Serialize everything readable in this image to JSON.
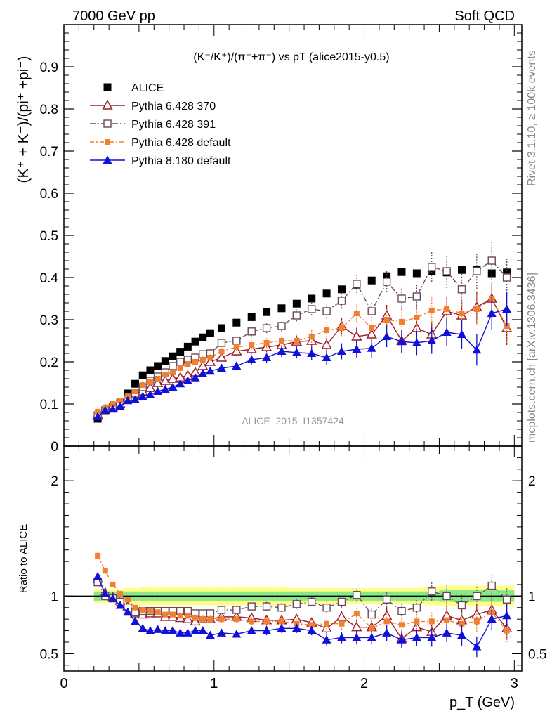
{
  "header": {
    "left": "7000 GeV pp",
    "right": "Soft QCD"
  },
  "side_labels": {
    "rivet": "Rivet 3.1.10, ≥ 100k events",
    "mcplots": "mcplots.cern.ch [arXiv:1306.3436]"
  },
  "colors": {
    "alice": "#000000",
    "p6_370": "#9b1b2a",
    "p6_391": "#6b4a58",
    "p6_default": "#f07f32",
    "p8_default": "#1010d8",
    "band_yellow": "#ffff88",
    "band_green": "#88e888"
  },
  "chart_data": [
    {
      "type": "scatter",
      "panel": "main",
      "title": "(K⁻/K⁺)/(π⁻+π⁻) vs pT (alice2015-y0.5)",
      "watermark": "ALICE_2015_I1357424",
      "ylabel": "(K⁺ + K⁻)/(pi⁺ +pi⁻)",
      "xlabel": "p_T (GeV)",
      "xlim": [
        0,
        3.05
      ],
      "ylim": [
        0,
        1.0
      ],
      "yticks": [
        "0",
        "0.1",
        "0.2",
        "0.3",
        "0.4",
        "0.5",
        "0.6",
        "0.7",
        "0.8",
        "0.9"
      ],
      "legend_position": "top-left",
      "x": [
        0.225,
        0.275,
        0.325,
        0.375,
        0.425,
        0.475,
        0.525,
        0.575,
        0.625,
        0.675,
        0.725,
        0.775,
        0.825,
        0.875,
        0.925,
        0.975,
        1.05,
        1.15,
        1.25,
        1.35,
        1.45,
        1.55,
        1.65,
        1.75,
        1.85,
        1.95,
        2.05,
        2.15,
        2.25,
        2.35,
        2.45,
        2.55,
        2.65,
        2.75,
        2.85,
        2.95
      ],
      "series": [
        {
          "name": "ALICE",
          "marker": "square-filled",
          "color": "#000000",
          "values": [
            0.065,
            0.085,
            0.092,
            0.103,
            0.125,
            0.148,
            0.168,
            0.18,
            0.19,
            0.202,
            0.213,
            0.224,
            0.236,
            0.248,
            0.258,
            0.268,
            0.28,
            0.293,
            0.306,
            0.318,
            0.327,
            0.338,
            0.35,
            0.362,
            0.372,
            0.383,
            0.393,
            0.403,
            0.413,
            0.41,
            0.415,
            0.412,
            0.418,
            0.418,
            0.41,
            0.412
          ],
          "errors": [
            0.003,
            0.003,
            0.003,
            0.003,
            0.003,
            0.003,
            0.003,
            0.003,
            0.003,
            0.003,
            0.003,
            0.003,
            0.003,
            0.003,
            0.003,
            0.003,
            0.003,
            0.003,
            0.003,
            0.003,
            0.003,
            0.003,
            0.003,
            0.004,
            0.004,
            0.004,
            0.004,
            0.004,
            0.004,
            0.004,
            0.004,
            0.004,
            0.005,
            0.005,
            0.005,
            0.005
          ]
        },
        {
          "name": "Pythia 6.428 370",
          "marker": "triangle-open",
          "color": "#9b1b2a",
          "values": [
            0.075,
            0.088,
            0.092,
            0.1,
            0.115,
            0.123,
            0.13,
            0.138,
            0.15,
            0.155,
            0.16,
            0.163,
            0.168,
            0.175,
            0.19,
            0.2,
            0.21,
            0.225,
            0.23,
            0.235,
            0.24,
            0.248,
            0.25,
            0.24,
            0.285,
            0.26,
            0.265,
            0.31,
            0.25,
            0.28,
            0.265,
            0.32,
            0.31,
            0.33,
            0.35,
            0.28
          ],
          "errors": [
            0.003,
            0.003,
            0.003,
            0.004,
            0.004,
            0.004,
            0.005,
            0.005,
            0.005,
            0.006,
            0.006,
            0.006,
            0.007,
            0.007,
            0.008,
            0.008,
            0.009,
            0.01,
            0.011,
            0.012,
            0.013,
            0.014,
            0.015,
            0.017,
            0.019,
            0.021,
            0.023,
            0.025,
            0.027,
            0.029,
            0.031,
            0.033,
            0.035,
            0.037,
            0.039,
            0.04
          ]
        },
        {
          "name": "Pythia 6.428 391",
          "marker": "square-open",
          "color": "#6b4a58",
          "values": [
            0.073,
            0.085,
            0.09,
            0.098,
            0.112,
            0.125,
            0.14,
            0.155,
            0.165,
            0.175,
            0.19,
            0.2,
            0.205,
            0.21,
            0.218,
            0.22,
            0.245,
            0.25,
            0.272,
            0.28,
            0.285,
            0.31,
            0.325,
            0.32,
            0.345,
            0.385,
            0.32,
            0.39,
            0.35,
            0.355,
            0.425,
            0.415,
            0.372,
            0.415,
            0.44,
            0.4
          ],
          "errors": [
            0.003,
            0.003,
            0.003,
            0.004,
            0.004,
            0.004,
            0.005,
            0.005,
            0.005,
            0.006,
            0.006,
            0.006,
            0.007,
            0.007,
            0.008,
            0.008,
            0.009,
            0.01,
            0.011,
            0.012,
            0.013,
            0.014,
            0.015,
            0.017,
            0.019,
            0.021,
            0.023,
            0.025,
            0.027,
            0.029,
            0.035,
            0.04,
            0.04,
            0.042,
            0.045,
            0.045
          ]
        },
        {
          "name": "Pythia 6.428 default",
          "marker": "square-filled-small",
          "color": "#f07f32",
          "values": [
            0.082,
            0.092,
            0.1,
            0.108,
            0.118,
            0.13,
            0.145,
            0.152,
            0.16,
            0.17,
            0.175,
            0.185,
            0.195,
            0.2,
            0.205,
            0.21,
            0.225,
            0.235,
            0.24,
            0.245,
            0.25,
            0.25,
            0.26,
            0.275,
            0.28,
            0.315,
            0.28,
            0.3,
            0.295,
            0.305,
            0.322,
            0.325,
            0.315,
            0.325,
            0.35,
            0.285
          ],
          "errors": [
            0.003,
            0.003,
            0.003,
            0.004,
            0.004,
            0.004,
            0.005,
            0.005,
            0.005,
            0.006,
            0.006,
            0.006,
            0.007,
            0.007,
            0.008,
            0.008,
            0.009,
            0.01,
            0.011,
            0.012,
            0.013,
            0.014,
            0.015,
            0.017,
            0.019,
            0.021,
            0.023,
            0.025,
            0.027,
            0.029,
            0.031,
            0.033,
            0.035,
            0.037,
            0.039,
            0.04
          ]
        },
        {
          "name": "Pythia 8.180 default",
          "marker": "triangle-filled",
          "color": "#1010d8",
          "values": [
            0.07,
            0.085,
            0.088,
            0.095,
            0.108,
            0.11,
            0.118,
            0.122,
            0.13,
            0.135,
            0.14,
            0.148,
            0.155,
            0.162,
            0.172,
            0.178,
            0.185,
            0.19,
            0.205,
            0.21,
            0.225,
            0.222,
            0.22,
            0.21,
            0.225,
            0.23,
            0.232,
            0.26,
            0.248,
            0.245,
            0.25,
            0.27,
            0.265,
            0.228,
            0.315,
            0.325
          ],
          "errors": [
            0.003,
            0.003,
            0.003,
            0.004,
            0.004,
            0.004,
            0.005,
            0.005,
            0.005,
            0.006,
            0.006,
            0.006,
            0.007,
            0.007,
            0.008,
            0.008,
            0.009,
            0.01,
            0.011,
            0.012,
            0.013,
            0.014,
            0.015,
            0.017,
            0.019,
            0.021,
            0.023,
            0.025,
            0.027,
            0.029,
            0.031,
            0.033,
            0.035,
            0.037,
            0.039,
            0.04
          ]
        }
      ]
    },
    {
      "type": "scatter",
      "panel": "ratio",
      "ylabel": "Ratio to ALICE",
      "xlabel": "p_T (GeV)",
      "xlim": [
        0,
        3.05
      ],
      "ylim": [
        0.35,
        2.3
      ],
      "yticks": [
        "0.5",
        "1",
        "2"
      ],
      "xticks": [
        "0",
        "1",
        "2",
        "3"
      ],
      "reference_line": 1,
      "band_yellow": {
        "x_edges": [
          0.2,
          0.3,
          0.4,
          0.5,
          0.6,
          0.7,
          0.8,
          0.9,
          1.0,
          1.1,
          1.2,
          1.3,
          1.4,
          1.5,
          1.6,
          1.7,
          1.8,
          1.9,
          2.0,
          2.1,
          2.2,
          2.3,
          2.4,
          2.5,
          2.6,
          2.7,
          2.8,
          2.9,
          3.0
        ],
        "half_widths": [
          0.06,
          0.06,
          0.07,
          0.08,
          0.08,
          0.08,
          0.08,
          0.08,
          0.08,
          0.08,
          0.08,
          0.08,
          0.08,
          0.07,
          0.07,
          0.07,
          0.07,
          0.07,
          0.07,
          0.07,
          0.07,
          0.07,
          0.08,
          0.09,
          0.09,
          0.09,
          0.09,
          0.09
        ]
      },
      "band_green": {
        "x_edges": [
          0.2,
          0.3,
          0.4,
          0.5,
          0.6,
          0.7,
          0.8,
          0.9,
          1.0,
          1.1,
          1.2,
          1.3,
          1.4,
          1.5,
          1.6,
          1.7,
          1.8,
          1.9,
          2.0,
          2.1,
          2.2,
          2.3,
          2.4,
          2.5,
          2.6,
          2.7,
          2.8,
          2.9,
          3.0
        ],
        "half_widths": [
          0.04,
          0.04,
          0.04,
          0.04,
          0.04,
          0.04,
          0.04,
          0.04,
          0.04,
          0.04,
          0.04,
          0.04,
          0.04,
          0.04,
          0.04,
          0.04,
          0.04,
          0.04,
          0.04,
          0.04,
          0.04,
          0.04,
          0.04,
          0.05,
          0.05,
          0.05,
          0.05,
          0.05
        ]
      },
      "x": [
        0.225,
        0.275,
        0.325,
        0.375,
        0.425,
        0.475,
        0.525,
        0.575,
        0.625,
        0.675,
        0.725,
        0.775,
        0.825,
        0.875,
        0.925,
        0.975,
        1.05,
        1.15,
        1.25,
        1.35,
        1.45,
        1.55,
        1.65,
        1.75,
        1.85,
        1.95,
        2.05,
        2.15,
        2.25,
        2.35,
        2.45,
        2.55,
        2.65,
        2.75,
        2.85,
        2.95
      ],
      "series": [
        {
          "name": "Pythia 6.428 370",
          "values": [
            1.15,
            1.03,
            0.99,
            0.96,
            0.91,
            0.85,
            0.84,
            0.85,
            0.85,
            0.82,
            0.82,
            0.81,
            0.8,
            0.78,
            0.8,
            0.8,
            0.82,
            0.82,
            0.81,
            0.79,
            0.79,
            0.8,
            0.77,
            0.72,
            0.82,
            0.73,
            0.73,
            0.83,
            0.63,
            0.73,
            0.69,
            0.83,
            0.79,
            0.84,
            0.88,
            0.72
          ],
          "errors": [
            0.03,
            0.02,
            0.02,
            0.02,
            0.02,
            0.02,
            0.02,
            0.02,
            0.02,
            0.02,
            0.02,
            0.02,
            0.03,
            0.03,
            0.03,
            0.03,
            0.03,
            0.03,
            0.03,
            0.04,
            0.04,
            0.04,
            0.04,
            0.05,
            0.05,
            0.06,
            0.06,
            0.07,
            0.07,
            0.07,
            0.08,
            0.08,
            0.09,
            0.09,
            0.1,
            0.1
          ]
        },
        {
          "name": "Pythia 6.428 391",
          "values": [
            1.12,
            1.0,
            0.98,
            0.95,
            0.9,
            0.86,
            0.87,
            0.87,
            0.87,
            0.87,
            0.87,
            0.87,
            0.87,
            0.85,
            0.85,
            0.85,
            0.88,
            0.88,
            0.91,
            0.91,
            0.9,
            0.93,
            0.95,
            0.9,
            0.95,
            1.01,
            0.84,
            0.97,
            0.87,
            0.9,
            1.04,
            1.0,
            0.92,
            1.0,
            1.09,
            0.97
          ],
          "errors": [
            0.03,
            0.02,
            0.02,
            0.02,
            0.02,
            0.02,
            0.02,
            0.02,
            0.02,
            0.02,
            0.02,
            0.02,
            0.03,
            0.03,
            0.03,
            0.03,
            0.03,
            0.03,
            0.03,
            0.04,
            0.04,
            0.04,
            0.04,
            0.05,
            0.05,
            0.06,
            0.06,
            0.07,
            0.07,
            0.07,
            0.08,
            0.09,
            0.09,
            0.1,
            0.11,
            0.11
          ]
        },
        {
          "name": "Pythia 6.428 default",
          "values": [
            1.35,
            1.22,
            1.1,
            1.02,
            0.97,
            0.9,
            0.88,
            0.87,
            0.86,
            0.84,
            0.84,
            0.83,
            0.83,
            0.81,
            0.8,
            0.8,
            0.8,
            0.8,
            0.78,
            0.78,
            0.78,
            0.76,
            0.75,
            0.76,
            0.76,
            0.85,
            0.72,
            0.78,
            0.75,
            0.78,
            0.78,
            0.79,
            0.76,
            0.78,
            0.86,
            0.7
          ],
          "errors": [
            0.03,
            0.02,
            0.02,
            0.02,
            0.02,
            0.02,
            0.02,
            0.02,
            0.02,
            0.02,
            0.02,
            0.02,
            0.03,
            0.03,
            0.03,
            0.03,
            0.03,
            0.03,
            0.03,
            0.04,
            0.04,
            0.04,
            0.04,
            0.05,
            0.05,
            0.06,
            0.06,
            0.07,
            0.07,
            0.07,
            0.08,
            0.08,
            0.09,
            0.09,
            0.1,
            0.1
          ]
        },
        {
          "name": "Pythia 8.180 default",
          "values": [
            1.17,
            1.02,
            0.98,
            0.92,
            0.86,
            0.78,
            0.72,
            0.7,
            0.71,
            0.7,
            0.7,
            0.68,
            0.68,
            0.7,
            0.7,
            0.66,
            0.68,
            0.67,
            0.7,
            0.7,
            0.72,
            0.72,
            0.7,
            0.62,
            0.64,
            0.64,
            0.64,
            0.68,
            0.62,
            0.64,
            0.64,
            0.68,
            0.66,
            0.56,
            0.8,
            0.83
          ],
          "errors": [
            0.03,
            0.02,
            0.02,
            0.02,
            0.02,
            0.02,
            0.02,
            0.02,
            0.02,
            0.02,
            0.02,
            0.02,
            0.03,
            0.03,
            0.03,
            0.03,
            0.03,
            0.03,
            0.03,
            0.04,
            0.04,
            0.04,
            0.04,
            0.05,
            0.05,
            0.06,
            0.06,
            0.07,
            0.07,
            0.07,
            0.08,
            0.08,
            0.09,
            0.09,
            0.1,
            0.1
          ]
        }
      ]
    }
  ]
}
